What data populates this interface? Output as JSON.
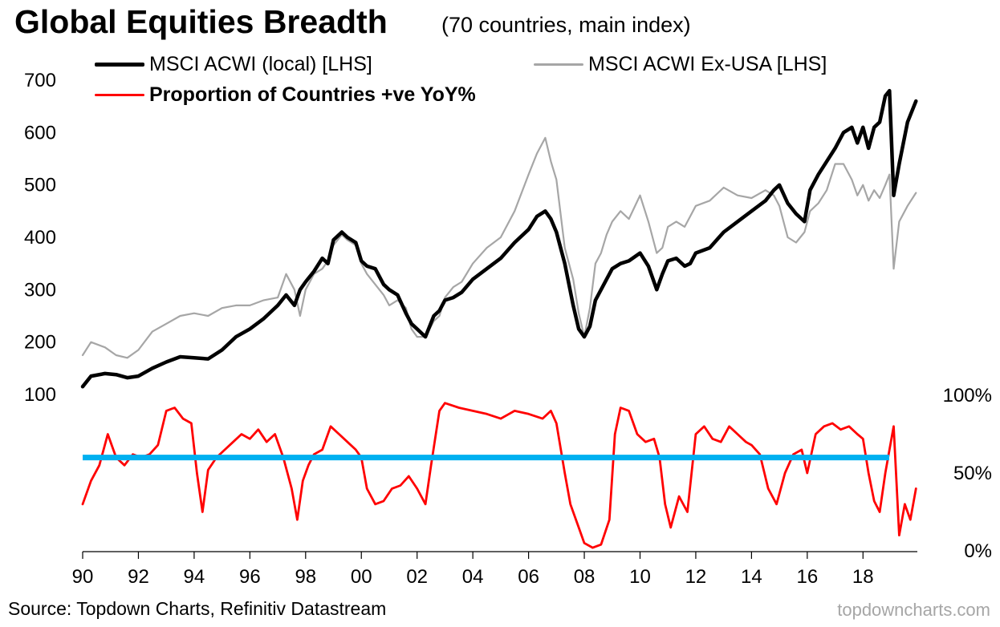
{
  "title": "Global Equities Breadth",
  "subtitle": "(70 countries, main index)",
  "source": "Source: Topdown Charts, Refinitiv Datastream",
  "brand": "topdowncharts.com",
  "colors": {
    "acwi": "#000000",
    "exusa": "#a6a6a6",
    "breadth": "#ff0000",
    "threshold": "#00b0f0"
  },
  "chart_data": {
    "type": "line",
    "x_tick_labels": [
      "90",
      "92",
      "94",
      "96",
      "98",
      "00",
      "02",
      "04",
      "06",
      "08",
      "10",
      "12",
      "14",
      "16",
      "18"
    ],
    "x_ticks": [
      1990,
      1992,
      1994,
      1996,
      1998,
      2000,
      2002,
      2004,
      2006,
      2008,
      2010,
      2012,
      2014,
      2016,
      2018
    ],
    "xlim": [
      1990,
      2019.95
    ],
    "left_axis": {
      "ticks": [
        100,
        200,
        300,
        400,
        500,
        600,
        700
      ],
      "tick_labels": [
        "100",
        "200",
        "300",
        "400",
        "500",
        "600",
        "700"
      ],
      "ylim": [
        100,
        700
      ]
    },
    "right_axis": {
      "ticks": [
        0,
        50,
        100
      ],
      "tick_labels": [
        "0%",
        "50%",
        "100%"
      ],
      "ylim": [
        0,
        100
      ]
    },
    "threshold": 60,
    "legend": [
      {
        "label": "MSCI ACWI (local) [LHS]",
        "key": "acwi"
      },
      {
        "label": "MSCI ACWI Ex-USA [LHS]",
        "key": "exusa"
      },
      {
        "label": "Proportion of Countries +ve YoY%",
        "key": "breadth"
      }
    ],
    "series": [
      {
        "name": "MSCI ACWI (local) [LHS]",
        "axis": "left",
        "x": [
          1990.0,
          1990.3,
          1990.8,
          1991.2,
          1991.6,
          1992.0,
          1992.5,
          1993.0,
          1993.5,
          1994.0,
          1994.5,
          1995.0,
          1995.5,
          1996.0,
          1996.5,
          1997.0,
          1997.3,
          1997.6,
          1997.8,
          1998.0,
          1998.3,
          1998.6,
          1998.8,
          1999.0,
          1999.3,
          1999.5,
          1999.8,
          2000.0,
          2000.2,
          2000.5,
          2000.8,
          2001.0,
          2001.3,
          2001.6,
          2001.8,
          2002.0,
          2002.3,
          2002.6,
          2002.8,
          2003.0,
          2003.3,
          2003.6,
          2004.0,
          2004.5,
          2005.0,
          2005.5,
          2006.0,
          2006.3,
          2006.6,
          2006.8,
          2007.0,
          2007.3,
          2007.6,
          2007.8,
          2008.0,
          2008.2,
          2008.4,
          2008.6,
          2008.8,
          2009.0,
          2009.3,
          2009.6,
          2010.0,
          2010.3,
          2010.6,
          2010.8,
          2011.0,
          2011.3,
          2011.6,
          2011.8,
          2012.0,
          2012.5,
          2013.0,
          2013.5,
          2014.0,
          2014.5,
          2014.8,
          2015.0,
          2015.3,
          2015.6,
          2015.9,
          2016.1,
          2016.4,
          2016.7,
          2017.0,
          2017.3,
          2017.6,
          2017.8,
          2018.0,
          2018.2,
          2018.4,
          2018.6,
          2018.8,
          2018.95,
          2019.1,
          2019.3,
          2019.6,
          2019.9
        ],
        "values": [
          115,
          135,
          140,
          138,
          132,
          135,
          150,
          162,
          172,
          170,
          168,
          185,
          210,
          225,
          245,
          270,
          290,
          270,
          300,
          315,
          335,
          360,
          350,
          395,
          410,
          400,
          390,
          355,
          345,
          340,
          310,
          300,
          290,
          255,
          235,
          225,
          210,
          250,
          260,
          280,
          285,
          295,
          320,
          340,
          360,
          390,
          415,
          440,
          450,
          435,
          410,
          350,
          270,
          225,
          210,
          230,
          280,
          300,
          320,
          340,
          350,
          355,
          370,
          345,
          300,
          330,
          355,
          360,
          345,
          350,
          370,
          380,
          410,
          430,
          450,
          470,
          490,
          500,
          465,
          445,
          430,
          490,
          520,
          545,
          570,
          600,
          610,
          580,
          610,
          570,
          610,
          620,
          670,
          680,
          480,
          540,
          620,
          660
        ]
      },
      {
        "name": "MSCI ACWI Ex-USA [LHS]",
        "axis": "left",
        "x": [
          1990.0,
          1990.3,
          1990.8,
          1991.2,
          1991.6,
          1992.0,
          1992.5,
          1993.0,
          1993.5,
          1994.0,
          1994.5,
          1995.0,
          1995.5,
          1996.0,
          1996.5,
          1997.0,
          1997.3,
          1997.6,
          1997.8,
          1998.0,
          1998.3,
          1998.6,
          1998.8,
          1999.0,
          1999.3,
          1999.5,
          1999.8,
          2000.0,
          2000.2,
          2000.5,
          2000.8,
          2001.0,
          2001.3,
          2001.6,
          2001.8,
          2002.0,
          2002.3,
          2002.6,
          2002.8,
          2003.0,
          2003.3,
          2003.6,
          2004.0,
          2004.5,
          2005.0,
          2005.5,
          2006.0,
          2006.3,
          2006.6,
          2006.8,
          2007.0,
          2007.3,
          2007.6,
          2007.8,
          2008.0,
          2008.2,
          2008.4,
          2008.6,
          2008.8,
          2009.0,
          2009.3,
          2009.6,
          2010.0,
          2010.3,
          2010.6,
          2010.8,
          2011.0,
          2011.3,
          2011.6,
          2011.8,
          2012.0,
          2012.5,
          2013.0,
          2013.5,
          2014.0,
          2014.5,
          2014.8,
          2015.0,
          2015.3,
          2015.6,
          2015.9,
          2016.1,
          2016.4,
          2016.7,
          2017.0,
          2017.3,
          2017.6,
          2017.8,
          2018.0,
          2018.2,
          2018.4,
          2018.6,
          2018.8,
          2018.95,
          2019.1,
          2019.3,
          2019.6,
          2019.9
        ],
        "values": [
          175,
          200,
          190,
          175,
          170,
          185,
          220,
          235,
          250,
          255,
          250,
          265,
          270,
          270,
          280,
          285,
          330,
          300,
          250,
          300,
          330,
          340,
          355,
          385,
          405,
          395,
          385,
          350,
          330,
          310,
          290,
          270,
          280,
          265,
          225,
          210,
          210,
          240,
          250,
          285,
          305,
          315,
          350,
          380,
          400,
          450,
          520,
          560,
          590,
          545,
          510,
          380,
          320,
          255,
          210,
          265,
          350,
          370,
          405,
          430,
          450,
          435,
          480,
          430,
          370,
          380,
          420,
          430,
          420,
          440,
          460,
          470,
          495,
          480,
          475,
          490,
          480,
          460,
          400,
          390,
          410,
          450,
          465,
          490,
          540,
          540,
          510,
          480,
          500,
          470,
          490,
          475,
          500,
          520,
          340,
          430,
          460,
          485
        ]
      },
      {
        "name": "Proportion of Countries +ve YoY%",
        "axis": "right",
        "x": [
          1990.0,
          1990.3,
          1990.6,
          1990.9,
          1991.2,
          1991.5,
          1991.8,
          1992.1,
          1992.4,
          1992.7,
          1993.0,
          1993.3,
          1993.6,
          1993.9,
          1994.1,
          1994.3,
          1994.5,
          1994.8,
          1995.1,
          1995.4,
          1995.7,
          1996.0,
          1996.3,
          1996.6,
          1996.9,
          1997.2,
          1997.5,
          1997.7,
          1997.9,
          1998.1,
          1998.3,
          1998.6,
          1998.9,
          1999.2,
          1999.5,
          1999.8,
          2000.0,
          2000.2,
          2000.5,
          2000.8,
          2001.1,
          2001.4,
          2001.7,
          2002.0,
          2002.3,
          2002.5,
          2002.8,
          2003.0,
          2003.5,
          2004.0,
          2004.5,
          2005.0,
          2005.5,
          2006.0,
          2006.5,
          2006.8,
          2007.0,
          2007.3,
          2007.5,
          2007.8,
          2008.0,
          2008.3,
          2008.6,
          2008.9,
          2009.1,
          2009.3,
          2009.6,
          2009.9,
          2010.2,
          2010.5,
          2010.7,
          2010.9,
          2011.1,
          2011.4,
          2011.7,
          2012.0,
          2012.3,
          2012.6,
          2012.9,
          2013.2,
          2013.5,
          2013.8,
          2014.0,
          2014.3,
          2014.6,
          2014.9,
          2015.2,
          2015.5,
          2015.8,
          2016.0,
          2016.3,
          2016.6,
          2016.9,
          2017.2,
          2017.5,
          2017.8,
          2018.0,
          2018.2,
          2018.4,
          2018.6,
          2018.8,
          2019.0,
          2019.1,
          2019.3,
          2019.5,
          2019.7,
          2019.9
        ],
        "values": [
          30,
          45,
          55,
          75,
          60,
          55,
          62,
          60,
          62,
          68,
          90,
          92,
          85,
          82,
          50,
          25,
          52,
          60,
          65,
          70,
          75,
          72,
          78,
          70,
          75,
          60,
          40,
          20,
          45,
          55,
          62,
          65,
          80,
          75,
          70,
          65,
          60,
          40,
          30,
          32,
          40,
          42,
          48,
          40,
          30,
          55,
          90,
          95,
          92,
          90,
          88,
          85,
          90,
          88,
          85,
          90,
          82,
          50,
          30,
          15,
          5,
          2,
          4,
          20,
          75,
          92,
          90,
          75,
          70,
          72,
          60,
          30,
          15,
          35,
          25,
          75,
          80,
          72,
          70,
          80,
          75,
          70,
          68,
          62,
          40,
          30,
          50,
          62,
          65,
          50,
          75,
          80,
          82,
          78,
          80,
          75,
          72,
          50,
          32,
          25,
          50,
          70,
          80,
          10,
          30,
          20,
          40
        ]
      }
    ]
  }
}
